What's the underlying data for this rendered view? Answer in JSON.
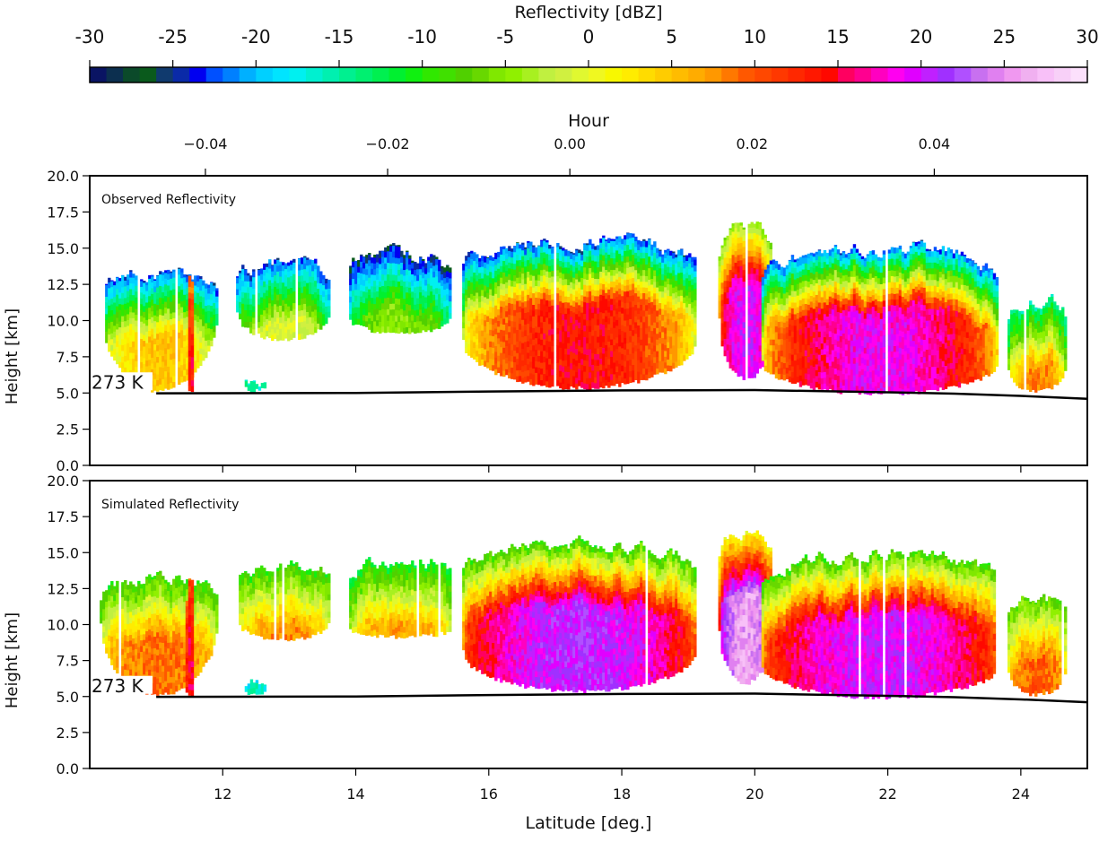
{
  "chart_data": {
    "type": "heatmap",
    "colorbar": {
      "title": "Reflectivity [dBZ]",
      "range": [
        -30,
        30
      ],
      "ticks": [
        "-30",
        "-25",
        "-20",
        "-15",
        "-10",
        "-5",
        "0",
        "5",
        "10",
        "15",
        "20",
        "25",
        "30"
      ],
      "colors": [
        "#0a1463",
        "#0c2f4f",
        "#0b4a2a",
        "#0a5a1c",
        "#103a6e",
        "#0a2aa8",
        "#0000f0",
        "#0050ff",
        "#0080ff",
        "#00b0ff",
        "#00d0ff",
        "#00e4ff",
        "#00f0f0",
        "#00f0d0",
        "#00f0b0",
        "#00f090",
        "#00f070",
        "#00f050",
        "#00f030",
        "#10f010",
        "#30e800",
        "#40e000",
        "#50d000",
        "#68d800",
        "#80e800",
        "#90f000",
        "#a8f020",
        "#c0f040",
        "#d0f040",
        "#e0f830",
        "#f0f820",
        "#f8f800",
        "#ffec00",
        "#ffdc00",
        "#ffcc00",
        "#ffbc00",
        "#ffac00",
        "#ff9800",
        "#ff7800",
        "#ff5800",
        "#ff4800",
        "#ff3800",
        "#ff2800",
        "#ff1800",
        "#ff0800",
        "#ff0060",
        "#ff0090",
        "#ff00c0",
        "#ff00f0",
        "#e000ff",
        "#c020ff",
        "#a030ff",
        "#b050ff",
        "#c870f0",
        "#e080f0",
        "#f098f0",
        "#f0b0f0",
        "#f8c0f8",
        "#f8d0f8",
        "#fce0fc"
      ]
    },
    "top_axis": {
      "label": "Hour",
      "ticks": [
        -0.04,
        -0.02,
        0.0,
        0.02,
        0.04
      ],
      "tick_labels": [
        "−0.04",
        "−0.02",
        "0.00",
        "0.02",
        "0.04"
      ],
      "range": [
        -0.0527,
        0.0568
      ]
    },
    "x_axis": {
      "label": "Latitude [deg.]",
      "range": [
        10,
        25
      ],
      "ticks": [
        12,
        14,
        16,
        18,
        20,
        22,
        24
      ],
      "tick_labels": [
        "12",
        "14",
        "16",
        "18",
        "20",
        "22",
        "24"
      ]
    },
    "y_axis": {
      "label": "Height [km]",
      "range": [
        0,
        20
      ],
      "ticks": [
        0,
        2.5,
        5,
        7.5,
        10,
        12.5,
        15,
        17.5,
        20
      ],
      "tick_labels": [
        "0.0",
        "2.5",
        "5.0",
        "7.5",
        "10.0",
        "12.5",
        "15.0",
        "17.5",
        "20.0"
      ]
    },
    "freezing_level": {
      "label": "273 K",
      "latitude": [
        11,
        14,
        16,
        18,
        20,
        22,
        23,
        24,
        25
      ],
      "height_km": [
        4.98,
        5.0,
        5.1,
        5.18,
        5.2,
        5.05,
        4.95,
        4.8,
        4.6
      ]
    },
    "panels": [
      {
        "title": "Observed Reflectivity",
        "cells": [
          {
            "lat": [
              10.15,
              11.9
            ],
            "top_km": 13.3,
            "base_km": 5.0,
            "edge_base_km": 10.5,
            "min_dbz": -24,
            "max_dbz": 5
          },
          {
            "lat": [
              11.44,
              11.56
            ],
            "top_km": 13.0,
            "base_km": 5.0,
            "edge_base_km": 5.0,
            "min_dbz": 8,
            "max_dbz": 14
          },
          {
            "lat": [
              12.2,
              13.6
            ],
            "top_km": 14.0,
            "base_km": 8.5,
            "edge_base_km": 10.5,
            "min_dbz": -24,
            "max_dbz": 0
          },
          {
            "lat": [
              12.33,
              12.62
            ],
            "top_km": 5.9,
            "base_km": 5.0,
            "edge_base_km": 5.2,
            "min_dbz": -16,
            "max_dbz": -6
          },
          {
            "lat": [
              13.9,
              15.4
            ],
            "top_km": 14.5,
            "base_km": 9.0,
            "edge_base_km": 10.0,
            "min_dbz": -26,
            "max_dbz": -5
          },
          {
            "lat": [
              15.6,
              19.1
            ],
            "top_km": 15.6,
            "base_km": 5.2,
            "edge_base_km": 8.5,
            "min_dbz": -25,
            "max_dbz": 14
          },
          {
            "lat": [
              19.45,
              20.25
            ],
            "top_km": 16.5,
            "base_km": 5.8,
            "edge_base_km": 10.0,
            "min_dbz": -6,
            "max_dbz": 20
          },
          {
            "lat": [
              20.1,
              23.65
            ],
            "top_km": 15.0,
            "base_km": 4.8,
            "edge_base_km": 7.0,
            "min_dbz": -24,
            "max_dbz": 19
          },
          {
            "lat": [
              23.8,
              24.65
            ],
            "top_km": 11.6,
            "base_km": 5.0,
            "edge_base_km": 6.5,
            "min_dbz": -16,
            "max_dbz": 8
          }
        ]
      },
      {
        "title": "Simulated Reflectivity",
        "cells": [
          {
            "lat": [
              10.15,
              11.9
            ],
            "top_km": 13.3,
            "base_km": 5.0,
            "edge_base_km": 10.0,
            "min_dbz": -10,
            "max_dbz": 9
          },
          {
            "lat": [
              11.44,
              11.56
            ],
            "top_km": 13.0,
            "base_km": 5.0,
            "edge_base_km": 5.0,
            "min_dbz": 10,
            "max_dbz": 15
          },
          {
            "lat": [
              12.2,
              13.6
            ],
            "top_km": 14.0,
            "base_km": 8.8,
            "edge_base_km": 10.2,
            "min_dbz": -10,
            "max_dbz": 8
          },
          {
            "lat": [
              12.33,
              12.62
            ],
            "top_km": 5.9,
            "base_km": 5.0,
            "edge_base_km": 5.2,
            "min_dbz": -18,
            "max_dbz": -8
          },
          {
            "lat": [
              13.9,
              15.4
            ],
            "top_km": 14.5,
            "base_km": 9.0,
            "edge_base_km": 9.5,
            "min_dbz": -12,
            "max_dbz": 7
          },
          {
            "lat": [
              15.6,
              19.1
            ],
            "top_km": 15.6,
            "base_km": 5.2,
            "edge_base_km": 8.0,
            "min_dbz": -10,
            "max_dbz": 21
          },
          {
            "lat": [
              19.45,
              20.25
            ],
            "top_km": 16.6,
            "base_km": 5.8,
            "edge_base_km": 9.5,
            "min_dbz": 0,
            "max_dbz": 26
          },
          {
            "lat": [
              20.1,
              23.65
            ],
            "top_km": 15.0,
            "base_km": 4.8,
            "edge_base_km": 7.0,
            "min_dbz": -10,
            "max_dbz": 20
          },
          {
            "lat": [
              23.8,
              24.65
            ],
            "top_km": 11.8,
            "base_km": 5.0,
            "edge_base_km": 6.5,
            "min_dbz": -8,
            "max_dbz": 10
          }
        ]
      }
    ]
  }
}
